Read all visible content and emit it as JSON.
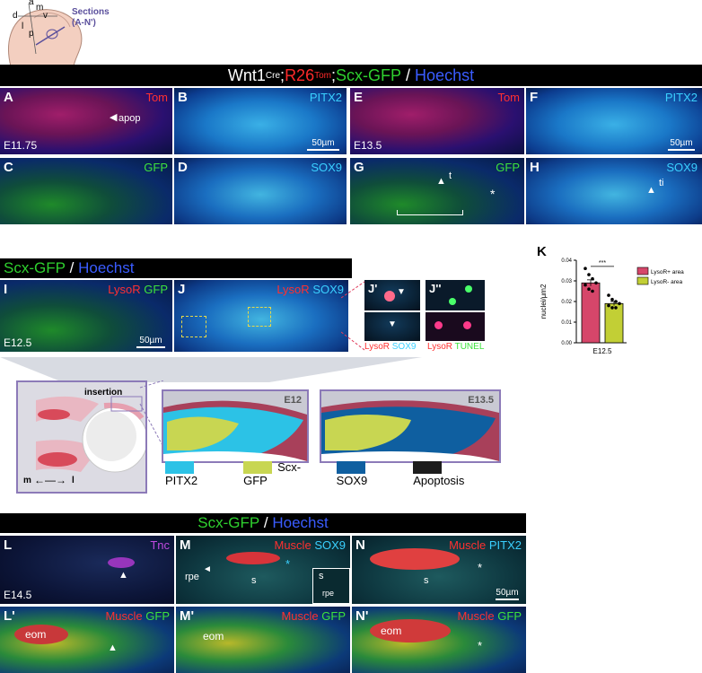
{
  "top_schematic": {
    "a": "a",
    "m": "m",
    "d": "d",
    "v": "v",
    "l": "l",
    "p": "p",
    "sections": "Sections",
    "sections_range": "(A-N')"
  },
  "banner1": {
    "wnt": "Wnt1",
    "cre": "Cre",
    "semi1": ";",
    "r26": "R26",
    "tom_sup": "Tom",
    "semi2": ";",
    "scx": "Scx-GFP",
    "slash": " / ",
    "hoechst": "Hoechst"
  },
  "panels_row1": [
    {
      "letter": "A",
      "channel": "Tom",
      "stage": "E11.75",
      "annotation": "apop"
    },
    {
      "letter": "B",
      "channel": "PITX2",
      "scale": "50µm"
    },
    {
      "letter": "E",
      "channel": "Tom",
      "stage": "E13.5"
    },
    {
      "letter": "F",
      "channel": "PITX2",
      "scale": "50µm"
    }
  ],
  "panels_row2": [
    {
      "letter": "C",
      "channel": "GFP"
    },
    {
      "letter": "D",
      "channel": "SOX9"
    },
    {
      "letter": "G",
      "channel": "GFP",
      "annotation": "t",
      "asterisk": "*"
    },
    {
      "letter": "H",
      "channel": "SOX9",
      "annotation": "ti"
    }
  ],
  "banner2": {
    "scx": "Scx-GFP",
    "slash": " / ",
    "hoechst": "Hoechst"
  },
  "panel_I": {
    "letter": "I",
    "ch1": "LysoR",
    "ch2": "GFP",
    "stage": "E12.5",
    "scale": "50µm"
  },
  "panel_J": {
    "letter": "J",
    "ch1": "LysoR",
    "ch2": "SOX9"
  },
  "panel_J1": {
    "letter": "J'",
    "ch1": "LysoR",
    "ch2": "SOX9"
  },
  "panel_J2": {
    "letter": "J''",
    "ch1": "LysoR",
    "ch2": "TUNEL"
  },
  "panel_K": {
    "letter": "K"
  },
  "chart_data": {
    "type": "bar",
    "categories": [
      "LysoR+ area",
      "LysoR- area"
    ],
    "values": [
      0.029,
      0.019
    ],
    "errors": [
      0.0015,
      0.001
    ],
    "points": [
      [
        0.036,
        0.033,
        0.031,
        0.029,
        0.028,
        0.026,
        0.025
      ],
      [
        0.023,
        0.021,
        0.02,
        0.019,
        0.018,
        0.017,
        0.017
      ]
    ],
    "colors": [
      "#d6466a",
      "#c2cf35"
    ],
    "xlabel": "E12.5",
    "ylabel": "nuclei/µm2",
    "ylim": [
      0,
      0.04
    ],
    "yticks": [
      "0.00",
      "0.01",
      "0.02",
      "0.03",
      "0.04"
    ],
    "significance": "***",
    "legend": [
      "LysoR+ area",
      "LysoR- area"
    ]
  },
  "schema": {
    "insertion": "insertion",
    "m": "m",
    "l": "l",
    "e12": "E12",
    "e135": "E13.5",
    "legend": [
      {
        "label": "PITX2",
        "color": "#2cc2e6"
      },
      {
        "label": "Scx-GFP",
        "color": "#c8d652"
      },
      {
        "label": "SOX9",
        "color": "#0f5fa0"
      },
      {
        "label": "Apoptosis",
        "color": "#1c1c1c"
      }
    ]
  },
  "banner3": {
    "scx": "Scx-GFP",
    "slash": " / ",
    "hoechst": "Hoechst"
  },
  "row3": [
    {
      "letter": "L",
      "channel": "Tnc",
      "stage": "E14.5"
    },
    {
      "letter": "M",
      "ch1": "Muscle",
      "ch2": "SOX9",
      "rpe": "rpe",
      "s": "s",
      "asterisk": "*",
      "inset_s": "s",
      "inset_rpe": "rpe"
    },
    {
      "letter": "N",
      "ch1": "Muscle",
      "ch2": "PITX2",
      "s": "s",
      "asterisk": "*",
      "scale": "50µm"
    }
  ],
  "row4": [
    {
      "letter": "L'",
      "ch1": "Muscle",
      "ch2": "GFP",
      "eom": "eom"
    },
    {
      "letter": "M'",
      "ch1": "Muscle",
      "ch2": "GFP",
      "eom": "eom"
    },
    {
      "letter": "N'",
      "ch1": "Muscle",
      "ch2": "GFP",
      "eom": "eom",
      "asterisk": "*"
    }
  ]
}
